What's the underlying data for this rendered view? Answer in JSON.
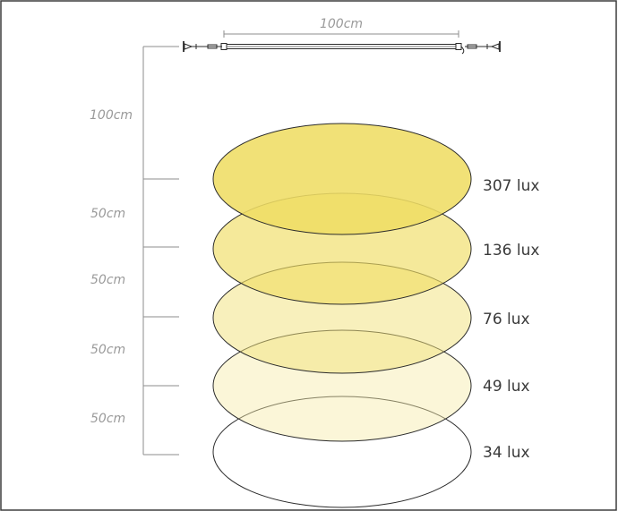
{
  "fixture": {
    "width_label": "100cm"
  },
  "height_labels": {
    "first": "100cm",
    "steps": [
      "50cm",
      "50cm",
      "50cm",
      "50cm"
    ]
  },
  "levels": [
    {
      "label": "307 lux",
      "fill": "#efdd64",
      "opacity": 0.88
    },
    {
      "label": "136 lux",
      "fill": "#efdd64",
      "opacity": 0.65
    },
    {
      "label": "76 lux",
      "fill": "#f1e17a",
      "opacity": 0.5
    },
    {
      "label": "49 lux",
      "fill": "#f6eca8",
      "opacity": 0.45
    },
    {
      "label": "34 lux",
      "fill": "#ffffff",
      "opacity": 0.0
    }
  ],
  "colors": {
    "frame": "#3c3c3c",
    "guide": "#8e8e8e",
    "text_muted": "#9a9a9a",
    "text_dark": "#3a3a3a"
  }
}
